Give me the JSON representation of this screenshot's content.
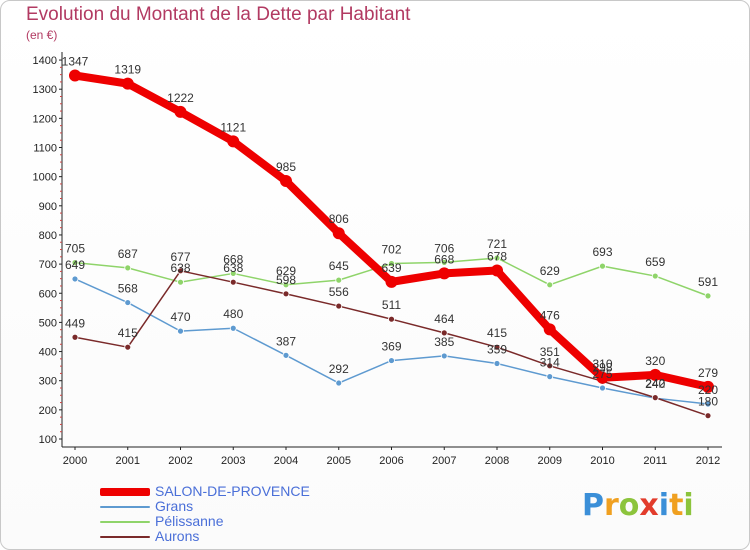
{
  "title": "Evolution du Montant de la Dette par Habitant",
  "subtitle": "(en €)",
  "logo": {
    "text": "Proxiti",
    "letters": [
      {
        "ch": "P",
        "color": "#3b8fd8"
      },
      {
        "ch": "r",
        "color": "#f0a020"
      },
      {
        "ch": "o",
        "color": "#8cc43c"
      },
      {
        "ch": "x",
        "color": "#e23c2c"
      },
      {
        "ch": "i",
        "color": "#3b8fd8"
      },
      {
        "ch": "t",
        "color": "#f0a020"
      },
      {
        "ch": "i",
        "color": "#8cc43c"
      }
    ]
  },
  "chart_data": {
    "type": "line",
    "title": "Evolution du Montant de la Dette par Habitant",
    "subtitle": "(en €)",
    "x": [
      2000,
      2001,
      2002,
      2003,
      2004,
      2005,
      2006,
      2007,
      2008,
      2009,
      2010,
      2011,
      2012
    ],
    "x_tick_labels": [
      "2000",
      "2001",
      "2002",
      "2003",
      "2004",
      "2005",
      "2006",
      "2007",
      "2008",
      "2009",
      "2010",
      "2011",
      "2012"
    ],
    "ylim": [
      100,
      1400
    ],
    "y_ticks": [
      100,
      200,
      300,
      400,
      500,
      600,
      700,
      800,
      900,
      1000,
      1100,
      1200,
      1300,
      1400
    ],
    "grid": false,
    "legend_position": "bottom-left",
    "series": [
      {
        "name": "SALON-DE-PROVENCE",
        "color": "#ee0000",
        "width": 8,
        "marker": 6,
        "values": [
          1347,
          1319,
          1222,
          1121,
          985,
          806,
          639,
          668,
          678,
          476,
          310,
          320,
          279
        ],
        "labels": [
          "1347",
          "1319",
          "1222",
          "1121",
          "985",
          "806",
          "639",
          "668",
          "678",
          "476",
          "310",
          "320",
          "279"
        ]
      },
      {
        "name": "Grans",
        "color": "#5e9ad0",
        "width": 1.5,
        "marker": 3,
        "values": [
          649,
          568,
          470,
          480,
          387,
          292,
          369,
          385,
          359,
          314,
          275,
          240,
          220
        ],
        "labels": [
          "649",
          "568",
          "470",
          "480",
          "387",
          "292",
          "369",
          "385",
          "359",
          "314",
          "275",
          "240",
          "220"
        ]
      },
      {
        "name": "Pélissanne",
        "color": "#8fd46a",
        "width": 1.5,
        "marker": 3,
        "values": [
          705,
          687,
          638,
          668,
          629,
          645,
          702,
          706,
          721,
          629,
          693,
          659,
          591
        ],
        "labels": [
          "705",
          "687",
          "638",
          "668",
          "629",
          "645",
          "702",
          "706",
          "721",
          "629",
          "693",
          "659",
          "591"
        ]
      },
      {
        "name": "Aurons",
        "color": "#7a2a2a",
        "width": 1.5,
        "marker": 3,
        "values": [
          449,
          415,
          677,
          638,
          598,
          556,
          511,
          464,
          415,
          351,
          298,
          242,
          180
        ],
        "labels": [
          "449",
          "415",
          "677",
          "638",
          "598",
          "556",
          "511",
          "464",
          "415",
          "351",
          "298",
          "242",
          "180"
        ]
      }
    ]
  }
}
